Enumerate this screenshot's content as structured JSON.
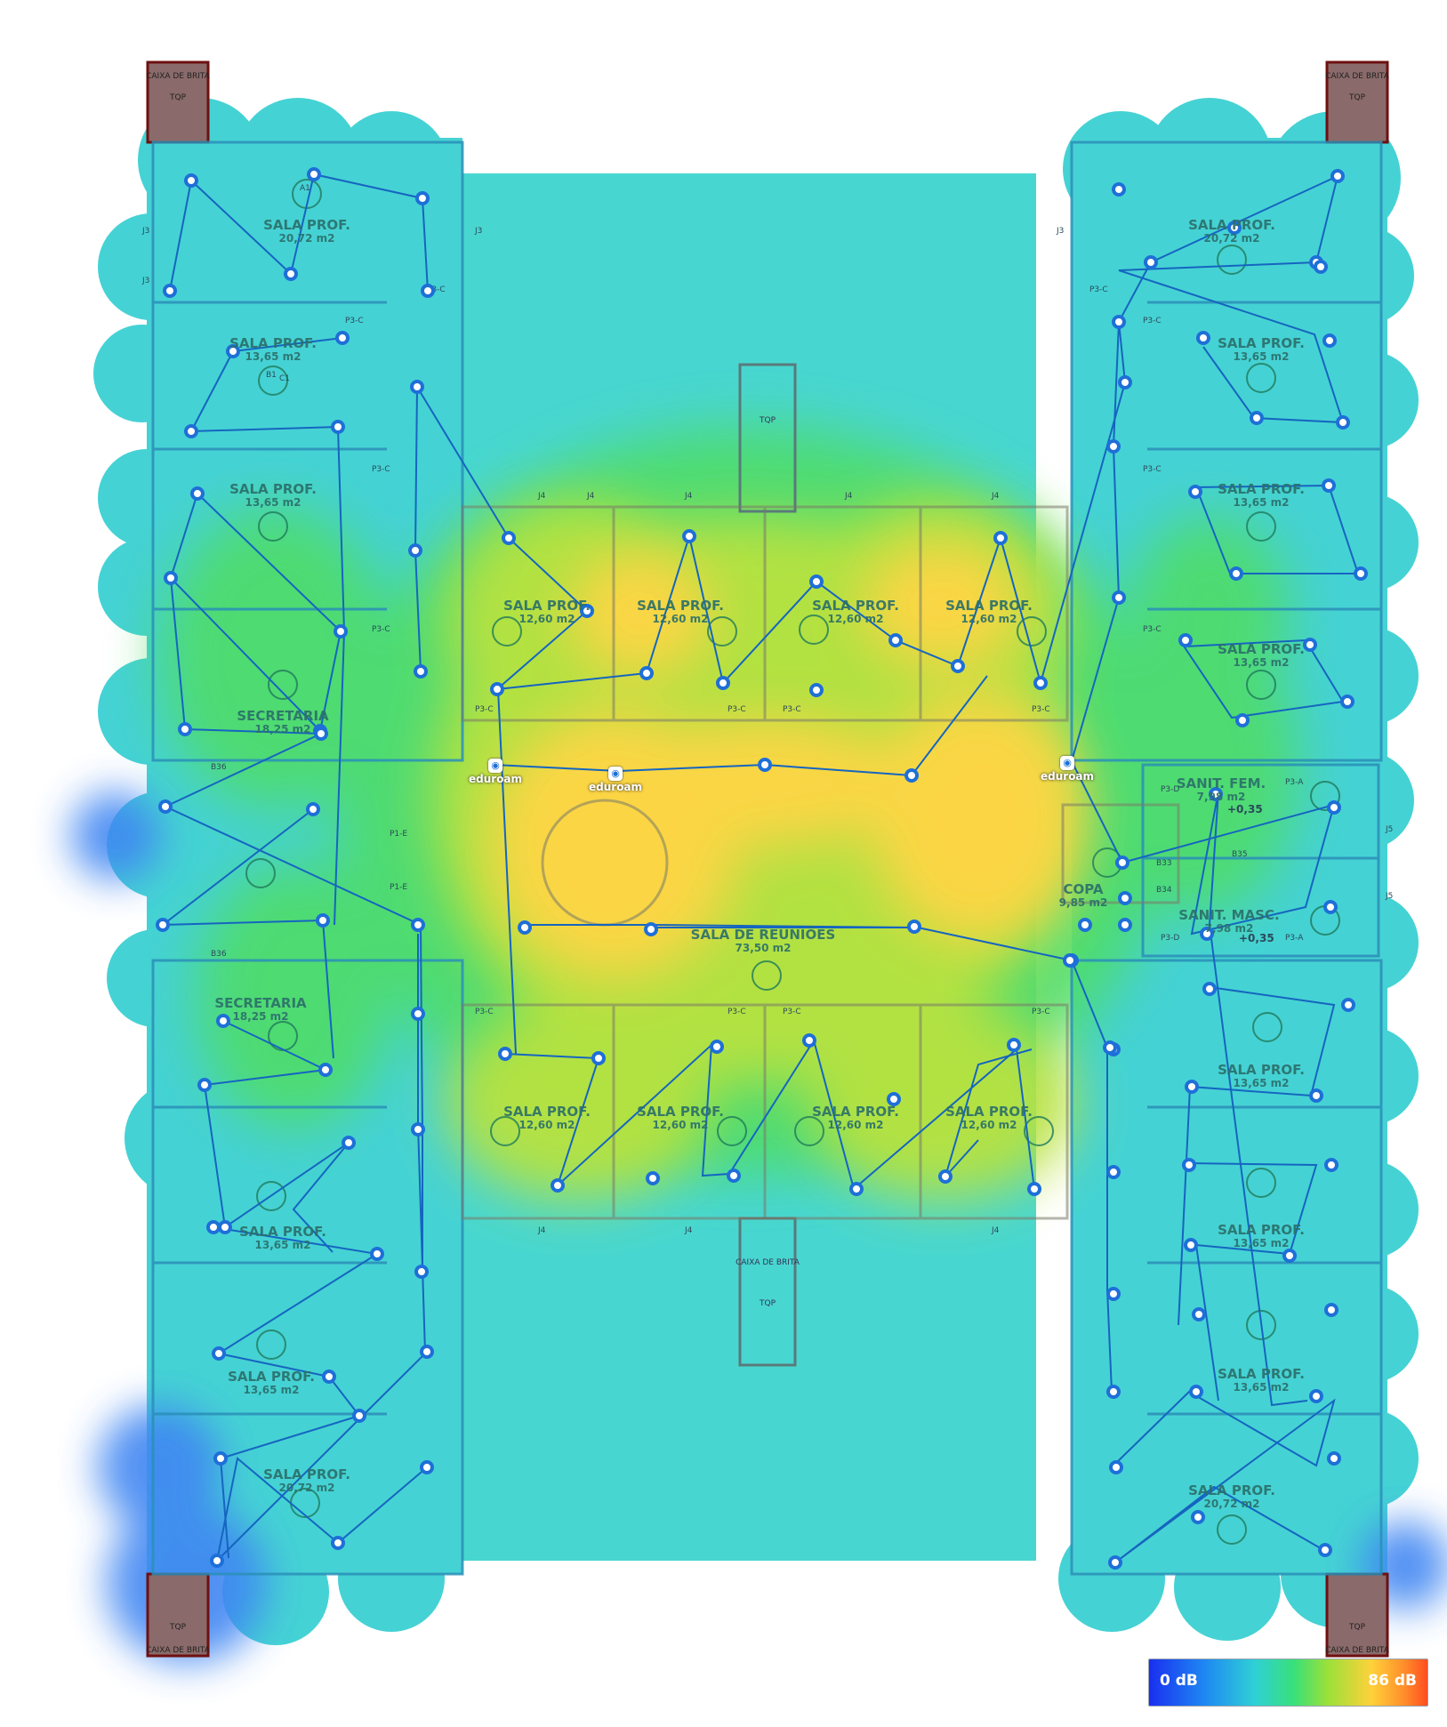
{
  "rooms": [
    {
      "name": "SALA PROF.",
      "area": "20,72 m2"
    },
    {
      "name": "SALA PROF.",
      "area": "13,65 m2"
    },
    {
      "name": "SALA PROF.",
      "area": "13,65 m2"
    },
    {
      "name": "SECRETARIA",
      "area": "18,25 m2"
    },
    {
      "name": "SECRETARIA",
      "area": "18,25 m2"
    },
    {
      "name": "SALA PROF.",
      "area": "13,65 m2"
    },
    {
      "name": "SALA PROF.",
      "area": "13,65 m2"
    },
    {
      "name": "SALA PROF.",
      "area": "20,72 m2"
    },
    {
      "name": "SALA PROF.",
      "area": "20,72 m2"
    },
    {
      "name": "SALA PROF.",
      "area": "13,65 m2"
    },
    {
      "name": "SALA PROF.",
      "area": "13,65 m2"
    },
    {
      "name": "SALA PROF.",
      "area": "13,65 m2"
    },
    {
      "name": "SANIT. FEM.",
      "area": "7,98 m2"
    },
    {
      "name": "COPA",
      "area": "9,85 m2"
    },
    {
      "name": "SANIT. MASC.",
      "area": "7,98 m2"
    },
    {
      "name": "SALA PROF.",
      "area": "13,65 m2"
    },
    {
      "name": "SALA PROF.",
      "area": "13,65 m2"
    },
    {
      "name": "SALA PROF.",
      "area": "13,65 m2"
    },
    {
      "name": "SALA PROF.",
      "area": "20,72 m2"
    },
    {
      "name": "SALA PROF.",
      "area": "12,60 m2"
    },
    {
      "name": "SALA PROF.",
      "area": "12,60 m2"
    },
    {
      "name": "SALA PROF.",
      "area": "12,60 m2"
    },
    {
      "name": "SALA PROF.",
      "area": "12,60 m2"
    },
    {
      "name": "SALA DE REUNIÕES",
      "area": "73,50 m2"
    },
    {
      "name": "SALA PROF.",
      "area": "12,60 m2"
    },
    {
      "name": "SALA PROF.",
      "area": "12,60 m2"
    },
    {
      "name": "SALA PROF.",
      "area": "12,60 m2"
    },
    {
      "name": "SALA PROF.",
      "area": "12,60 m2"
    }
  ],
  "access_points": [
    {
      "ssid": "eduroam"
    },
    {
      "ssid": "eduroam"
    },
    {
      "ssid": "eduroam"
    }
  ],
  "labels": {
    "caixa_de_brita": "CAIXA DE BRITA",
    "tqp": "TQP",
    "level_fem": "+0,35",
    "level_masc": "+0,35"
  },
  "annotations": [
    "J3",
    "J4",
    "J5",
    "B36",
    "B35",
    "B34",
    "B33",
    "P3-C",
    "P3-D",
    "P3-A",
    "P1-E",
    "A1",
    "B1",
    "C1"
  ],
  "legend": {
    "min_label": "0 dB",
    "max_label": "86 dB",
    "min_color": "#1a2ff0",
    "max_color": "#ff4d1f"
  },
  "colors": {
    "wall": "#1e88b4",
    "path": "#1565c0",
    "node": "#1e6fd8",
    "weak": "#3f7fff",
    "medium": "#45d3d0",
    "good": "#4fdc68",
    "strong": "#ffd545"
  }
}
